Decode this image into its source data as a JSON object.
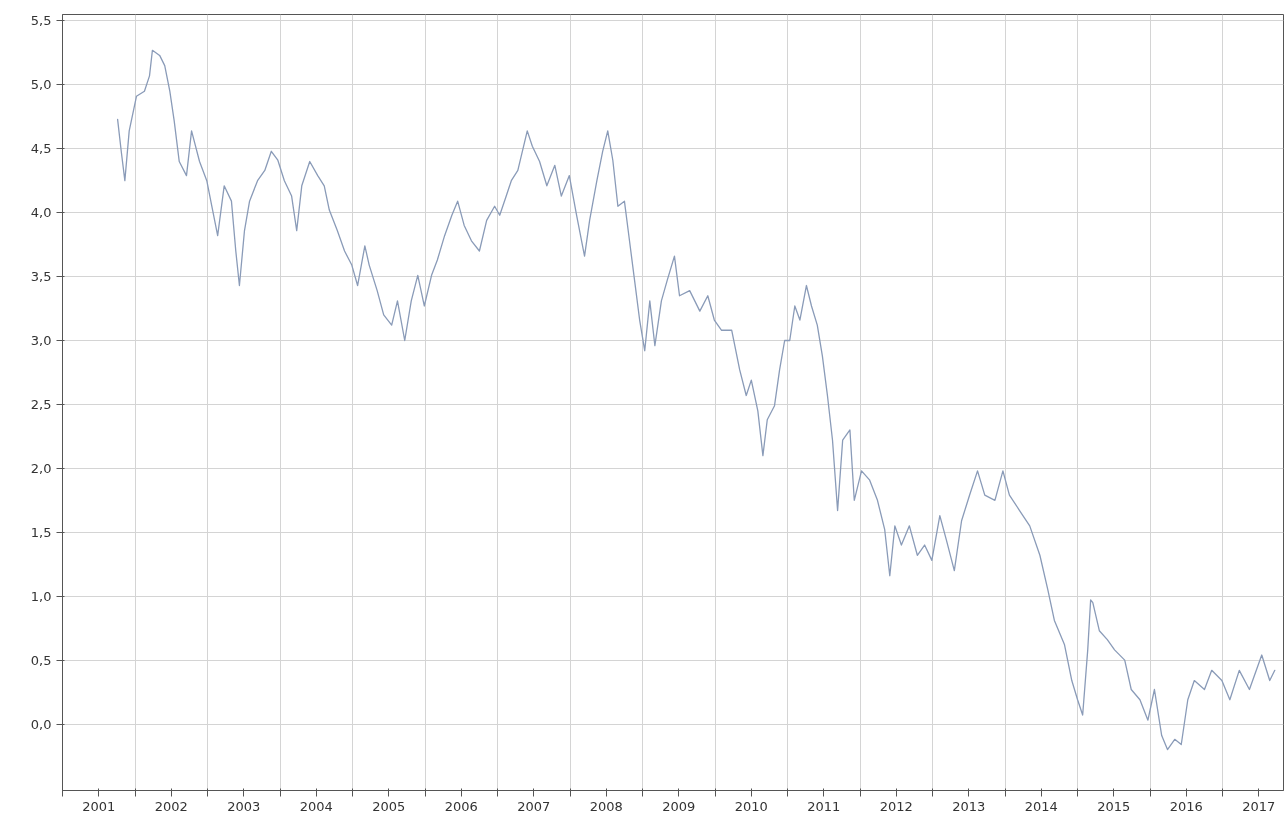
{
  "chart_data": {
    "type": "line",
    "x": [
      2001.76,
      2001.81,
      2001.86,
      2001.92,
      2002.02,
      2002.13,
      2002.2,
      2002.24,
      2002.34,
      2002.41,
      2002.48,
      2002.54,
      2002.61,
      2002.71,
      2002.78,
      2002.89,
      2002.99,
      2003.06,
      2003.14,
      2003.23,
      2003.33,
      2003.39,
      2003.44,
      2003.51,
      2003.58,
      2003.69,
      2003.79,
      2003.88,
      2003.97,
      2004.06,
      2004.16,
      2004.23,
      2004.3,
      2004.41,
      2004.52,
      2004.61,
      2004.68,
      2004.79,
      2004.89,
      2004.99,
      2005.07,
      2005.17,
      2005.23,
      2005.34,
      2005.43,
      2005.54,
      2005.62,
      2005.72,
      2005.81,
      2005.9,
      2005.99,
      2006.09,
      2006.17,
      2006.27,
      2006.37,
      2006.45,
      2006.54,
      2006.64,
      2006.75,
      2006.85,
      2006.96,
      2007.03,
      2007.12,
      2007.19,
      2007.28,
      2007.41,
      2007.48,
      2007.58,
      2007.68,
      2007.79,
      2007.88,
      2007.99,
      2008.09,
      2008.2,
      2008.27,
      2008.37,
      2008.45,
      2008.52,
      2008.59,
      2008.66,
      2008.75,
      2008.82,
      2008.89,
      2008.96,
      2009.03,
      2009.1,
      2009.17,
      2009.26,
      2009.34,
      2009.44,
      2009.51,
      2009.65,
      2009.79,
      2009.9,
      2009.99,
      2010.09,
      2010.23,
      2010.34,
      2010.43,
      2010.5,
      2010.59,
      2010.66,
      2010.72,
      2010.82,
      2010.89,
      2010.96,
      2011.03,
      2011.1,
      2011.17,
      2011.26,
      2011.33,
      2011.41,
      2011.48,
      2011.55,
      2011.62,
      2011.69,
      2011.76,
      2011.86,
      2011.92,
      2012.02,
      2012.13,
      2012.24,
      2012.34,
      2012.41,
      2012.48,
      2012.57,
      2012.68,
      2012.79,
      2012.89,
      2012.99,
      2013.1,
      2013.19,
      2013.3,
      2013.4,
      2013.51,
      2013.62,
      2013.72,
      2013.86,
      2013.97,
      2014.06,
      2014.2,
      2014.34,
      2014.48,
      2014.59,
      2014.68,
      2014.82,
      2014.92,
      2015.0,
      2015.07,
      2015.14,
      2015.18,
      2015.21,
      2015.3,
      2015.41,
      2015.51,
      2015.65,
      2015.74,
      2015.86,
      2015.97,
      2016.06,
      2016.16,
      2016.24,
      2016.34,
      2016.43,
      2016.52,
      2016.61,
      2016.75,
      2016.85,
      2016.99,
      2017.1,
      2017.23,
      2017.37,
      2017.54,
      2017.65,
      2017.72
    ],
    "series": [
      {
        "color": "#8a9bb8",
        "values": [
          4.73,
          4.48,
          4.25,
          4.64,
          4.91,
          4.95,
          5.07,
          5.27,
          5.23,
          5.15,
          4.95,
          4.72,
          4.4,
          4.29,
          4.64,
          4.4,
          4.25,
          4.05,
          3.82,
          4.21,
          4.09,
          3.7,
          3.43,
          3.86,
          4.09,
          4.25,
          4.33,
          4.48,
          4.41,
          4.25,
          4.13,
          3.86,
          4.21,
          4.4,
          4.29,
          4.21,
          4.02,
          3.86,
          3.7,
          3.59,
          3.43,
          3.74,
          3.59,
          3.39,
          3.2,
          3.12,
          3.31,
          3.0,
          3.31,
          3.51,
          3.27,
          3.51,
          3.63,
          3.82,
          3.98,
          4.09,
          3.9,
          3.78,
          3.7,
          3.94,
          4.05,
          3.98,
          4.13,
          4.25,
          4.33,
          4.64,
          4.52,
          4.4,
          4.21,
          4.37,
          4.13,
          4.29,
          3.98,
          3.66,
          3.94,
          4.25,
          4.48,
          4.64,
          4.41,
          4.05,
          4.09,
          3.78,
          3.47,
          3.16,
          2.92,
          3.31,
          2.96,
          3.31,
          3.47,
          3.66,
          3.35,
          3.39,
          3.23,
          3.35,
          3.16,
          3.08,
          3.08,
          2.77,
          2.57,
          2.69,
          2.45,
          2.1,
          2.38,
          2.49,
          2.77,
          3.0,
          3.0,
          3.27,
          3.16,
          3.43,
          3.27,
          3.12,
          2.88,
          2.57,
          2.22,
          1.67,
          2.22,
          2.3,
          1.75,
          1.98,
          1.91,
          1.75,
          1.52,
          1.16,
          1.55,
          1.4,
          1.55,
          1.32,
          1.4,
          1.28,
          1.63,
          1.44,
          1.2,
          1.59,
          1.79,
          1.98,
          1.79,
          1.75,
          1.98,
          1.79,
          1.67,
          1.55,
          1.32,
          1.05,
          0.81,
          0.62,
          0.34,
          0.19,
          0.07,
          0.58,
          0.97,
          0.95,
          0.73,
          0.66,
          0.58,
          0.5,
          0.27,
          0.19,
          0.03,
          0.27,
          -0.09,
          -0.2,
          -0.12,
          -0.16,
          0.19,
          0.34,
          0.27,
          0.42,
          0.34,
          0.19,
          0.42,
          0.27,
          0.54,
          0.34,
          0.42
        ]
      }
    ],
    "xlim": [
      2001.0,
      2017.84
    ],
    "ylim": [
      -0.52,
      5.55
    ],
    "xticks": [
      {
        "value": 2001,
        "label": null
      },
      {
        "value": 2001.5,
        "label": "2001"
      },
      {
        "value": 2002,
        "label": null
      },
      {
        "value": 2002.5,
        "label": "2002"
      },
      {
        "value": 2003,
        "label": null
      },
      {
        "value": 2003.5,
        "label": "2003"
      },
      {
        "value": 2004,
        "label": null
      },
      {
        "value": 2004.5,
        "label": "2004"
      },
      {
        "value": 2005,
        "label": null
      },
      {
        "value": 2005.5,
        "label": "2005"
      },
      {
        "value": 2006,
        "label": null
      },
      {
        "value": 2006.5,
        "label": "2006"
      },
      {
        "value": 2007,
        "label": null
      },
      {
        "value": 2007.5,
        "label": "2007"
      },
      {
        "value": 2008,
        "label": null
      },
      {
        "value": 2008.5,
        "label": "2008"
      },
      {
        "value": 2009,
        "label": null
      },
      {
        "value": 2009.5,
        "label": "2009"
      },
      {
        "value": 2010,
        "label": null
      },
      {
        "value": 2010.5,
        "label": "2010"
      },
      {
        "value": 2011,
        "label": null
      },
      {
        "value": 2011.5,
        "label": "2011"
      },
      {
        "value": 2012,
        "label": null
      },
      {
        "value": 2012.5,
        "label": "2012"
      },
      {
        "value": 2013,
        "label": null
      },
      {
        "value": 2013.5,
        "label": "2013"
      },
      {
        "value": 2014,
        "label": null
      },
      {
        "value": 2014.5,
        "label": "2014"
      },
      {
        "value": 2015,
        "label": null
      },
      {
        "value": 2015.5,
        "label": "2015"
      },
      {
        "value": 2016,
        "label": null
      },
      {
        "value": 2016.5,
        "label": "2016"
      },
      {
        "value": 2017,
        "label": null
      },
      {
        "value": 2017.5,
        "label": "2017"
      }
    ],
    "yticks": [
      {
        "value": 0,
        "label": "0,0"
      },
      {
        "value": 0.5,
        "label": "0,5"
      },
      {
        "value": 1,
        "label": "1,0"
      },
      {
        "value": 1.5,
        "label": "1,5"
      },
      {
        "value": 2,
        "label": "2,0"
      },
      {
        "value": 2.5,
        "label": "2,5"
      },
      {
        "value": 3,
        "label": "3,0"
      },
      {
        "value": 3.5,
        "label": "3,5"
      },
      {
        "value": 4,
        "label": "4,0"
      },
      {
        "value": 4.5,
        "label": "4,5"
      },
      {
        "value": 5,
        "label": "5,0"
      },
      {
        "value": 5.5,
        "label": "5,5"
      }
    ],
    "grid": true,
    "line_style": "solid"
  }
}
